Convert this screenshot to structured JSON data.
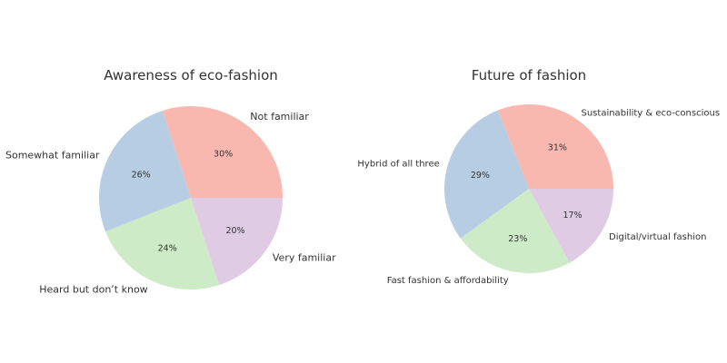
{
  "chart_data": [
    {
      "type": "pie",
      "title": "Awareness of eco-fashion",
      "slices": [
        {
          "label": "Not familiar",
          "value": 30,
          "pct_label": "30%",
          "color": "#F8B8B0"
        },
        {
          "label": "Somewhat familiar",
          "value": 26,
          "pct_label": "26%",
          "color": "#B7CDE3"
        },
        {
          "label": "Heard but don’t know",
          "value": 24,
          "pct_label": "24%",
          "color": "#CDEBC6"
        },
        {
          "label": "Very familiar",
          "value": 20,
          "pct_label": "20%",
          "color": "#DFCCE4"
        }
      ]
    },
    {
      "type": "pie",
      "title": "Future of fashion",
      "slices": [
        {
          "label": "Sustainability & eco-conscious",
          "value": 31,
          "pct_label": "31%",
          "color": "#F8B8B0"
        },
        {
          "label": "Hybrid of all three",
          "value": 29,
          "pct_label": "29%",
          "color": "#B7CDE3"
        },
        {
          "label": "Fast fashion & affordability",
          "value": 23,
          "pct_label": "23%",
          "color": "#CDEBC6"
        },
        {
          "label": "Digital/virtual fashion",
          "value": 17,
          "pct_label": "17%",
          "color": "#DFCCE4"
        }
      ]
    }
  ]
}
